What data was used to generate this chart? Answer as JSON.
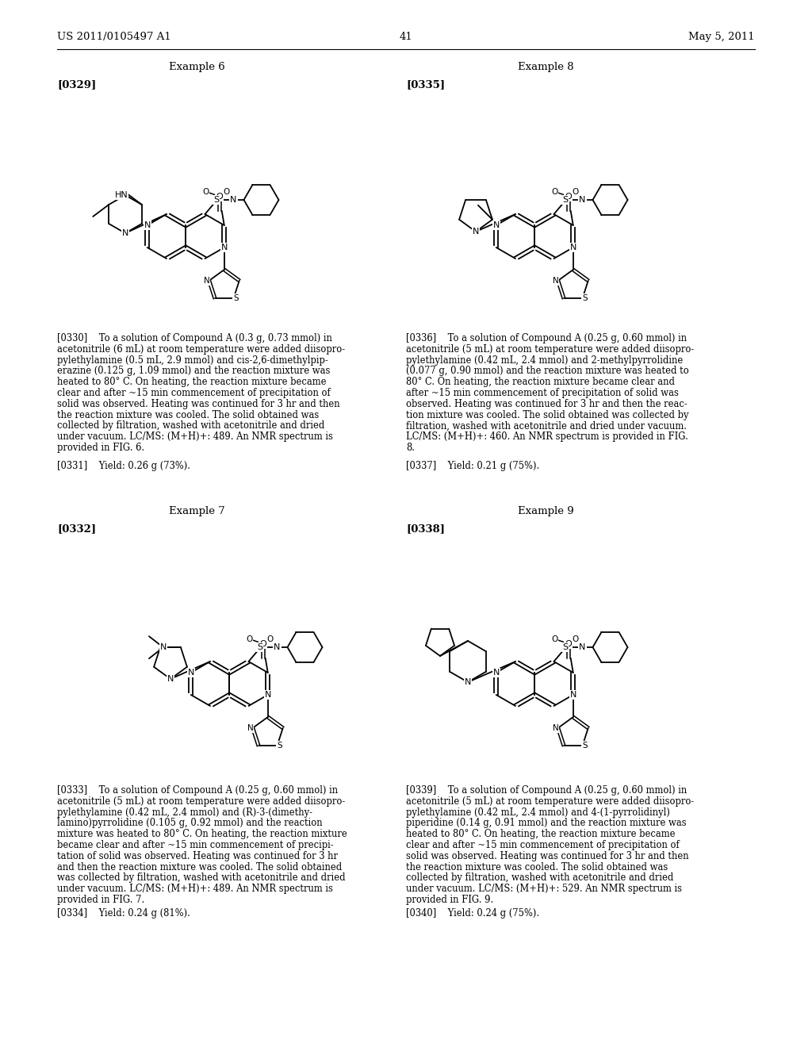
{
  "background_color": "#ffffff",
  "page_header_left": "US 2011/0105497 A1",
  "page_header_right": "May 5, 2011",
  "page_number": "41",
  "p0330_lines": [
    "[0330]    To a solution of Compound A (0.3 g, 0.73 mmol) in",
    "acetonitrile (6 mL) at room temperature were added diisopro-",
    "pylethylamine (0.5 mL, 2.9 mmol) and cis-2,6-dimethylpip-",
    "erazine (0.125 g, 1.09 mmol) and the reaction mixture was",
    "heated to 80° C. On heating, the reaction mixture became",
    "clear and after ~15 min commencement of precipitation of",
    "solid was observed. Heating was continued for 3 hr and then",
    "the reaction mixture was cooled. The solid obtained was",
    "collected by filtration, washed with acetonitrile and dried",
    "under vacuum. LC/MS: (M+H)+: 489. An NMR spectrum is",
    "provided in FIG. 6."
  ],
  "p0331_lines": [
    "[0331]    Yield: 0.26 g (73%)."
  ],
  "p0336_lines": [
    "[0336]    To a solution of Compound A (0.25 g, 0.60 mmol) in",
    "acetonitrile (5 mL) at room temperature were added diisopro-",
    "pylethylamine (0.42 mL, 2.4 mmol) and 2-methylpyrrolidine",
    "(0.077 g, 0.90 mmol) and the reaction mixture was heated to",
    "80° C. On heating, the reaction mixture became clear and",
    "after ~15 min commencement of precipitation of solid was",
    "observed. Heating was continued for 3 hr and then the reac-",
    "tion mixture was cooled. The solid obtained was collected by",
    "filtration, washed with acetonitrile and dried under vacuum.",
    "LC/MS: (M+H)+: 460. An NMR spectrum is provided in FIG.",
    "8."
  ],
  "p0337_lines": [
    "[0337]    Yield: 0.21 g (75%)."
  ],
  "p0333_lines": [
    "[0333]    To a solution of Compound A (0.25 g, 0.60 mmol) in",
    "acetonitrile (5 mL) at room temperature were added diisopro-",
    "pylethylamine (0.42 mL, 2.4 mmol) and (R)-3-(dimethy-",
    "lamino)pyrrolidine (0.105 g, 0.92 mmol) and the reaction",
    "mixture was heated to 80° C. On heating, the reaction mixture",
    "became clear and after ~15 min commencement of precipi-",
    "tation of solid was observed. Heating was continued for 3 hr",
    "and then the reaction mixture was cooled. The solid obtained",
    "was collected by filtration, washed with acetonitrile and dried",
    "under vacuum. LC/MS: (M+H)+: 489. An NMR spectrum is",
    "provided in FIG. 7."
  ],
  "p0334_lines": [
    "[0334]    Yield: 0.24 g (81%)."
  ],
  "p0339_lines": [
    "[0339]    To a solution of Compound A (0.25 g, 0.60 mmol) in",
    "acetonitrile (5 mL) at room temperature were added diisopro-",
    "pylethylamine (0.42 mL, 2.4 mmol) and 4-(1-pyrrolidinyl)",
    "piperidine (0.14 g, 0.91 mmol) and the reaction mixture was",
    "heated to 80° C. On heating, the reaction mixture became",
    "clear and after ~15 min commencement of precipitation of",
    "solid was observed. Heating was continued for 3 hr and then",
    "the reaction mixture was cooled. The solid obtained was",
    "collected by filtration, washed with acetonitrile and dried",
    "under vacuum. LC/MS: (M+H)+: 529. An NMR spectrum is",
    "provided in FIG. 9."
  ],
  "p0340_lines": [
    "[0340]    Yield: 0.24 g (75%)."
  ]
}
